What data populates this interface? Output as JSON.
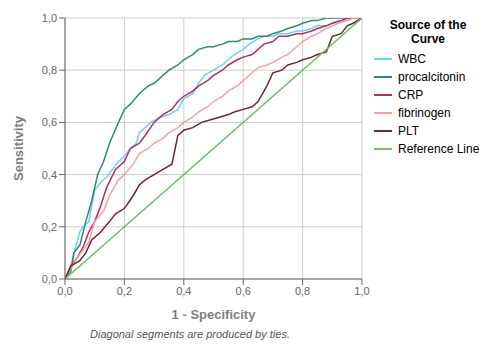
{
  "chart_data": {
    "type": "line",
    "xlabel": "1 - Specificity",
    "ylabel": "Sensitivity",
    "annotations": [
      "Diagonal segments are produced by ties."
    ],
    "legend_title": "Source of the\nCurve",
    "legend": "right",
    "grid": true,
    "xlim": [
      0.0,
      1.0
    ],
    "ylim": [
      0.0,
      1.0
    ],
    "xticks": [
      {
        "value": 0.0,
        "label": "0,0"
      },
      {
        "value": 0.2,
        "label": "0,2"
      },
      {
        "value": 0.4,
        "label": "0,4"
      },
      {
        "value": 0.6,
        "label": "0,6"
      },
      {
        "value": 0.8,
        "label": "0,8"
      },
      {
        "value": 1.0,
        "label": "1,0"
      }
    ],
    "yticks": [
      {
        "value": 0.0,
        "label": "0,0"
      },
      {
        "value": 0.2,
        "label": "0,2"
      },
      {
        "value": 0.4,
        "label": "0,4"
      },
      {
        "value": 0.6,
        "label": "0,6"
      },
      {
        "value": 0.8,
        "label": "0,8"
      },
      {
        "value": 1.0,
        "label": "1,0"
      }
    ],
    "series": [
      {
        "name": "WBC",
        "color": "#6ecff6",
        "x": [
          0.0,
          0.02,
          0.03,
          0.05,
          0.06,
          0.08,
          0.1,
          0.12,
          0.14,
          0.16,
          0.18,
          0.2,
          0.22,
          0.24,
          0.25,
          0.27,
          0.29,
          0.32,
          0.35,
          0.38,
          0.4,
          0.43,
          0.45,
          0.47,
          0.5,
          0.53,
          0.55,
          0.57,
          0.6,
          0.62,
          0.65,
          0.67,
          0.7,
          0.72,
          0.75,
          0.78,
          0.8,
          0.83,
          0.85,
          0.88,
          0.9,
          0.92,
          0.95,
          0.97,
          1.0
        ],
        "values": [
          0.0,
          0.05,
          0.1,
          0.18,
          0.2,
          0.22,
          0.34,
          0.37,
          0.39,
          0.42,
          0.45,
          0.47,
          0.5,
          0.52,
          0.56,
          0.58,
          0.6,
          0.62,
          0.63,
          0.65,
          0.69,
          0.71,
          0.75,
          0.78,
          0.8,
          0.82,
          0.84,
          0.86,
          0.88,
          0.9,
          0.92,
          0.93,
          0.93,
          0.94,
          0.94,
          0.95,
          0.95,
          0.96,
          0.97,
          0.97,
          0.98,
          0.99,
          0.99,
          1.0,
          1.0
        ]
      },
      {
        "name": "procalcitonin",
        "color": "#2e8b7a",
        "x": [
          0.0,
          0.02,
          0.03,
          0.05,
          0.07,
          0.09,
          0.11,
          0.13,
          0.15,
          0.18,
          0.2,
          0.22,
          0.25,
          0.28,
          0.3,
          0.33,
          0.35,
          0.38,
          0.4,
          0.43,
          0.45,
          0.48,
          0.5,
          0.53,
          0.55,
          0.58,
          0.6,
          0.63,
          0.65,
          0.68,
          0.7,
          0.73,
          0.75,
          0.78,
          0.8,
          0.83,
          0.85,
          0.88,
          0.9,
          0.93,
          0.95,
          0.97,
          1.0
        ],
        "values": [
          0.0,
          0.03,
          0.1,
          0.13,
          0.22,
          0.3,
          0.4,
          0.45,
          0.52,
          0.6,
          0.65,
          0.67,
          0.71,
          0.74,
          0.75,
          0.78,
          0.8,
          0.82,
          0.84,
          0.86,
          0.88,
          0.89,
          0.89,
          0.9,
          0.91,
          0.91,
          0.92,
          0.92,
          0.93,
          0.93,
          0.94,
          0.95,
          0.96,
          0.97,
          0.98,
          0.99,
          0.99,
          1.0,
          1.0,
          1.0,
          1.0,
          1.0,
          1.0
        ]
      },
      {
        "name": "CRP",
        "color": "#b03060",
        "x": [
          0.0,
          0.02,
          0.04,
          0.06,
          0.08,
          0.1,
          0.12,
          0.14,
          0.17,
          0.2,
          0.22,
          0.25,
          0.27,
          0.3,
          0.33,
          0.36,
          0.38,
          0.4,
          0.43,
          0.45,
          0.48,
          0.5,
          0.53,
          0.55,
          0.58,
          0.6,
          0.63,
          0.65,
          0.67,
          0.7,
          0.72,
          0.75,
          0.78,
          0.8,
          0.83,
          0.85,
          0.88,
          0.9,
          0.93,
          0.95,
          0.97,
          1.0
        ],
        "values": [
          0.0,
          0.05,
          0.08,
          0.12,
          0.18,
          0.22,
          0.28,
          0.35,
          0.42,
          0.45,
          0.5,
          0.52,
          0.55,
          0.6,
          0.63,
          0.65,
          0.68,
          0.7,
          0.72,
          0.74,
          0.76,
          0.78,
          0.8,
          0.82,
          0.84,
          0.85,
          0.86,
          0.88,
          0.9,
          0.91,
          0.93,
          0.93,
          0.94,
          0.94,
          0.95,
          0.96,
          0.97,
          0.98,
          0.99,
          1.0,
          1.0,
          1.0
        ]
      },
      {
        "name": "fibrinogen",
        "color": "#f4a0a0",
        "x": [
          0.0,
          0.02,
          0.04,
          0.06,
          0.08,
          0.1,
          0.13,
          0.15,
          0.18,
          0.2,
          0.23,
          0.25,
          0.28,
          0.3,
          0.33,
          0.35,
          0.38,
          0.4,
          0.43,
          0.45,
          0.48,
          0.5,
          0.53,
          0.55,
          0.58,
          0.6,
          0.63,
          0.65,
          0.68,
          0.7,
          0.73,
          0.75,
          0.78,
          0.8,
          0.83,
          0.85,
          0.88,
          0.9,
          0.92,
          0.95,
          0.97,
          1.0
        ],
        "values": [
          0.0,
          0.04,
          0.08,
          0.11,
          0.14,
          0.22,
          0.26,
          0.32,
          0.38,
          0.4,
          0.44,
          0.48,
          0.5,
          0.52,
          0.54,
          0.56,
          0.58,
          0.6,
          0.62,
          0.64,
          0.66,
          0.68,
          0.7,
          0.72,
          0.74,
          0.76,
          0.79,
          0.81,
          0.82,
          0.83,
          0.85,
          0.86,
          0.89,
          0.91,
          0.93,
          0.94,
          0.96,
          0.97,
          0.98,
          0.99,
          1.0,
          1.0
        ]
      },
      {
        "name": "PLT",
        "color": "#6b2737",
        "x": [
          0.0,
          0.02,
          0.05,
          0.07,
          0.09,
          0.12,
          0.15,
          0.17,
          0.2,
          0.23,
          0.25,
          0.27,
          0.3,
          0.33,
          0.36,
          0.38,
          0.4,
          0.43,
          0.46,
          0.49,
          0.52,
          0.55,
          0.57,
          0.6,
          0.63,
          0.65,
          0.68,
          0.7,
          0.73,
          0.75,
          0.78,
          0.8,
          0.83,
          0.85,
          0.88,
          0.9,
          0.93,
          0.95,
          0.97,
          1.0
        ],
        "values": [
          0.0,
          0.05,
          0.07,
          0.1,
          0.15,
          0.18,
          0.22,
          0.25,
          0.27,
          0.32,
          0.36,
          0.38,
          0.4,
          0.42,
          0.44,
          0.55,
          0.57,
          0.58,
          0.6,
          0.61,
          0.62,
          0.63,
          0.64,
          0.65,
          0.66,
          0.68,
          0.74,
          0.79,
          0.8,
          0.82,
          0.83,
          0.84,
          0.85,
          0.86,
          0.87,
          0.93,
          0.94,
          0.97,
          0.98,
          1.0
        ]
      },
      {
        "name": "Reference Line",
        "color": "#6dbf6d",
        "x": [
          0.0,
          1.0
        ],
        "values": [
          0.0,
          1.0
        ]
      }
    ]
  }
}
